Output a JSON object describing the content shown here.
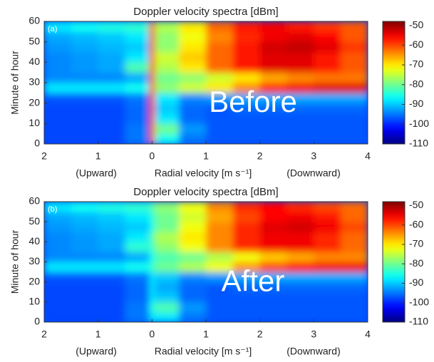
{
  "chart_data": [
    {
      "type": "heatmap",
      "title": "Doppler velocity spectra [dBm]",
      "panel_label": "(a)",
      "annotation": "Before",
      "xlabel_left": "(Upward)",
      "xlabel": "Radial velocity [m s⁻¹]",
      "xlabel_right": "(Downward)",
      "ylabel": "Minute of hour",
      "colormap": "jet",
      "xlim": [
        -2,
        4
      ],
      "ylim": [
        0,
        60
      ],
      "xticks": [
        {
          "value": -2,
          "label": "2"
        },
        {
          "value": -1,
          "label": "1"
        },
        0,
        1,
        2,
        3,
        4
      ],
      "yticks": [
        0,
        10,
        20,
        30,
        40,
        50,
        60
      ],
      "zlim": [
        -110,
        -48
      ],
      "zticks": [
        -50,
        -60,
        -70,
        -80,
        -90,
        -100,
        -110
      ],
      "x_edges": [
        -2,
        -1.5,
        -1,
        -0.5,
        -0.05,
        0.05,
        0.5,
        1,
        1.5,
        2,
        2.5,
        3,
        3.5,
        4
      ],
      "y_edges": [
        0,
        5,
        10,
        15,
        20,
        25,
        30,
        35,
        40,
        45,
        50,
        55,
        60
      ],
      "z": [
        [
          -98,
          -98,
          -98,
          -95,
          -58,
          -86,
          -95,
          -97,
          -97,
          -97,
          -97,
          -97,
          -97
        ],
        [
          -98,
          -98,
          -98,
          -95,
          -58,
          -80,
          -93,
          -97,
          -97,
          -97,
          -97,
          -97,
          -97
        ],
        [
          -98,
          -98,
          -98,
          -96,
          -58,
          -88,
          -96,
          -97,
          -97,
          -97,
          -97,
          -97,
          -97
        ],
        [
          -98,
          -98,
          -98,
          -96,
          -58,
          -90,
          -96,
          -97,
          -96,
          -96,
          -96,
          -96,
          -96
        ],
        [
          -97,
          -97,
          -97,
          -95,
          -58,
          -88,
          -94,
          -93,
          -92,
          -92,
          -92,
          -92,
          -92
        ],
        [
          -88,
          -88,
          -88,
          -86,
          -58,
          -78,
          -74,
          -70,
          -64,
          -58,
          -55,
          -54,
          -54
        ],
        [
          -94,
          -94,
          -94,
          -92,
          -58,
          -80,
          -78,
          -74,
          -70,
          -66,
          -64,
          -63,
          -63
        ],
        [
          -94,
          -93,
          -92,
          -82,
          -58,
          -76,
          -70,
          -62,
          -57,
          -54,
          -54,
          -57,
          -61
        ],
        [
          -94,
          -93,
          -92,
          -88,
          -58,
          -74,
          -68,
          -62,
          -57,
          -54,
          -54,
          -57,
          -61
        ],
        [
          -93,
          -92,
          -91,
          -90,
          -58,
          -78,
          -70,
          -62,
          -57,
          -53,
          -52,
          -54,
          -59
        ],
        [
          -92,
          -91,
          -90,
          -88,
          -58,
          -78,
          -72,
          -64,
          -58,
          -55,
          -54,
          -56,
          -61
        ],
        [
          -88,
          -86,
          -85,
          -84,
          -58,
          -76,
          -70,
          -62,
          -57,
          -55,
          -57,
          -59,
          -61
        ]
      ]
    },
    {
      "type": "heatmap",
      "title": "Doppler velocity spectra [dBm]",
      "panel_label": "(b)",
      "annotation": "After",
      "xlabel_left": "(Upward)",
      "xlabel": "Radial velocity [m s⁻¹]",
      "xlabel_right": "(Downward)",
      "ylabel": "Minute of hour",
      "colormap": "jet",
      "xlim": [
        -2,
        4
      ],
      "ylim": [
        0,
        60
      ],
      "xticks": [
        {
          "value": -2,
          "label": "2"
        },
        {
          "value": -1,
          "label": "1"
        },
        0,
        1,
        2,
        3,
        4
      ],
      "yticks": [
        0,
        10,
        20,
        30,
        40,
        50,
        60
      ],
      "zlim": [
        -110,
        -48
      ],
      "zticks": [
        -50,
        -60,
        -70,
        -80,
        -90,
        -100,
        -110
      ],
      "x_edges": [
        -2,
        -1.5,
        -1,
        -0.5,
        -0.05,
        0.05,
        0.5,
        1,
        1.5,
        2,
        2.5,
        3,
        3.5,
        4
      ],
      "y_edges": [
        0,
        5,
        10,
        15,
        20,
        25,
        30,
        35,
        40,
        45,
        50,
        55,
        60
      ],
      "z": [
        [
          -98,
          -98,
          -98,
          -95,
          -88,
          -88,
          -95,
          -97,
          -97,
          -97,
          -97,
          -97,
          -97
        ],
        [
          -98,
          -98,
          -98,
          -95,
          -85,
          -82,
          -93,
          -97,
          -97,
          -97,
          -97,
          -97,
          -97
        ],
        [
          -98,
          -98,
          -98,
          -96,
          -88,
          -90,
          -96,
          -97,
          -97,
          -97,
          -97,
          -97,
          -97
        ],
        [
          -98,
          -98,
          -98,
          -96,
          -88,
          -92,
          -96,
          -97,
          -96,
          -96,
          -96,
          -96,
          -96
        ],
        [
          -97,
          -97,
          -97,
          -95,
          -88,
          -90,
          -94,
          -93,
          -92,
          -92,
          -92,
          -92,
          -92
        ],
        [
          -88,
          -88,
          -88,
          -86,
          -84,
          -80,
          -76,
          -72,
          -65,
          -60,
          -56,
          -55,
          -55
        ],
        [
          -94,
          -94,
          -94,
          -92,
          -86,
          -82,
          -80,
          -76,
          -72,
          -68,
          -66,
          -64,
          -64
        ],
        [
          -94,
          -93,
          -92,
          -84,
          -84,
          -78,
          -72,
          -64,
          -58,
          -55,
          -55,
          -58,
          -62
        ],
        [
          -94,
          -93,
          -92,
          -88,
          -82,
          -76,
          -70,
          -64,
          -58,
          -55,
          -55,
          -58,
          -62
        ],
        [
          -93,
          -92,
          -91,
          -90,
          -86,
          -80,
          -72,
          -64,
          -58,
          -54,
          -53,
          -55,
          -60
        ],
        [
          -92,
          -91,
          -90,
          -88,
          -85,
          -80,
          -74,
          -66,
          -60,
          -56,
          -55,
          -57,
          -62
        ],
        [
          -88,
          -86,
          -85,
          -84,
          -82,
          -78,
          -72,
          -64,
          -58,
          -56,
          -58,
          -60,
          -62
        ]
      ]
    }
  ]
}
